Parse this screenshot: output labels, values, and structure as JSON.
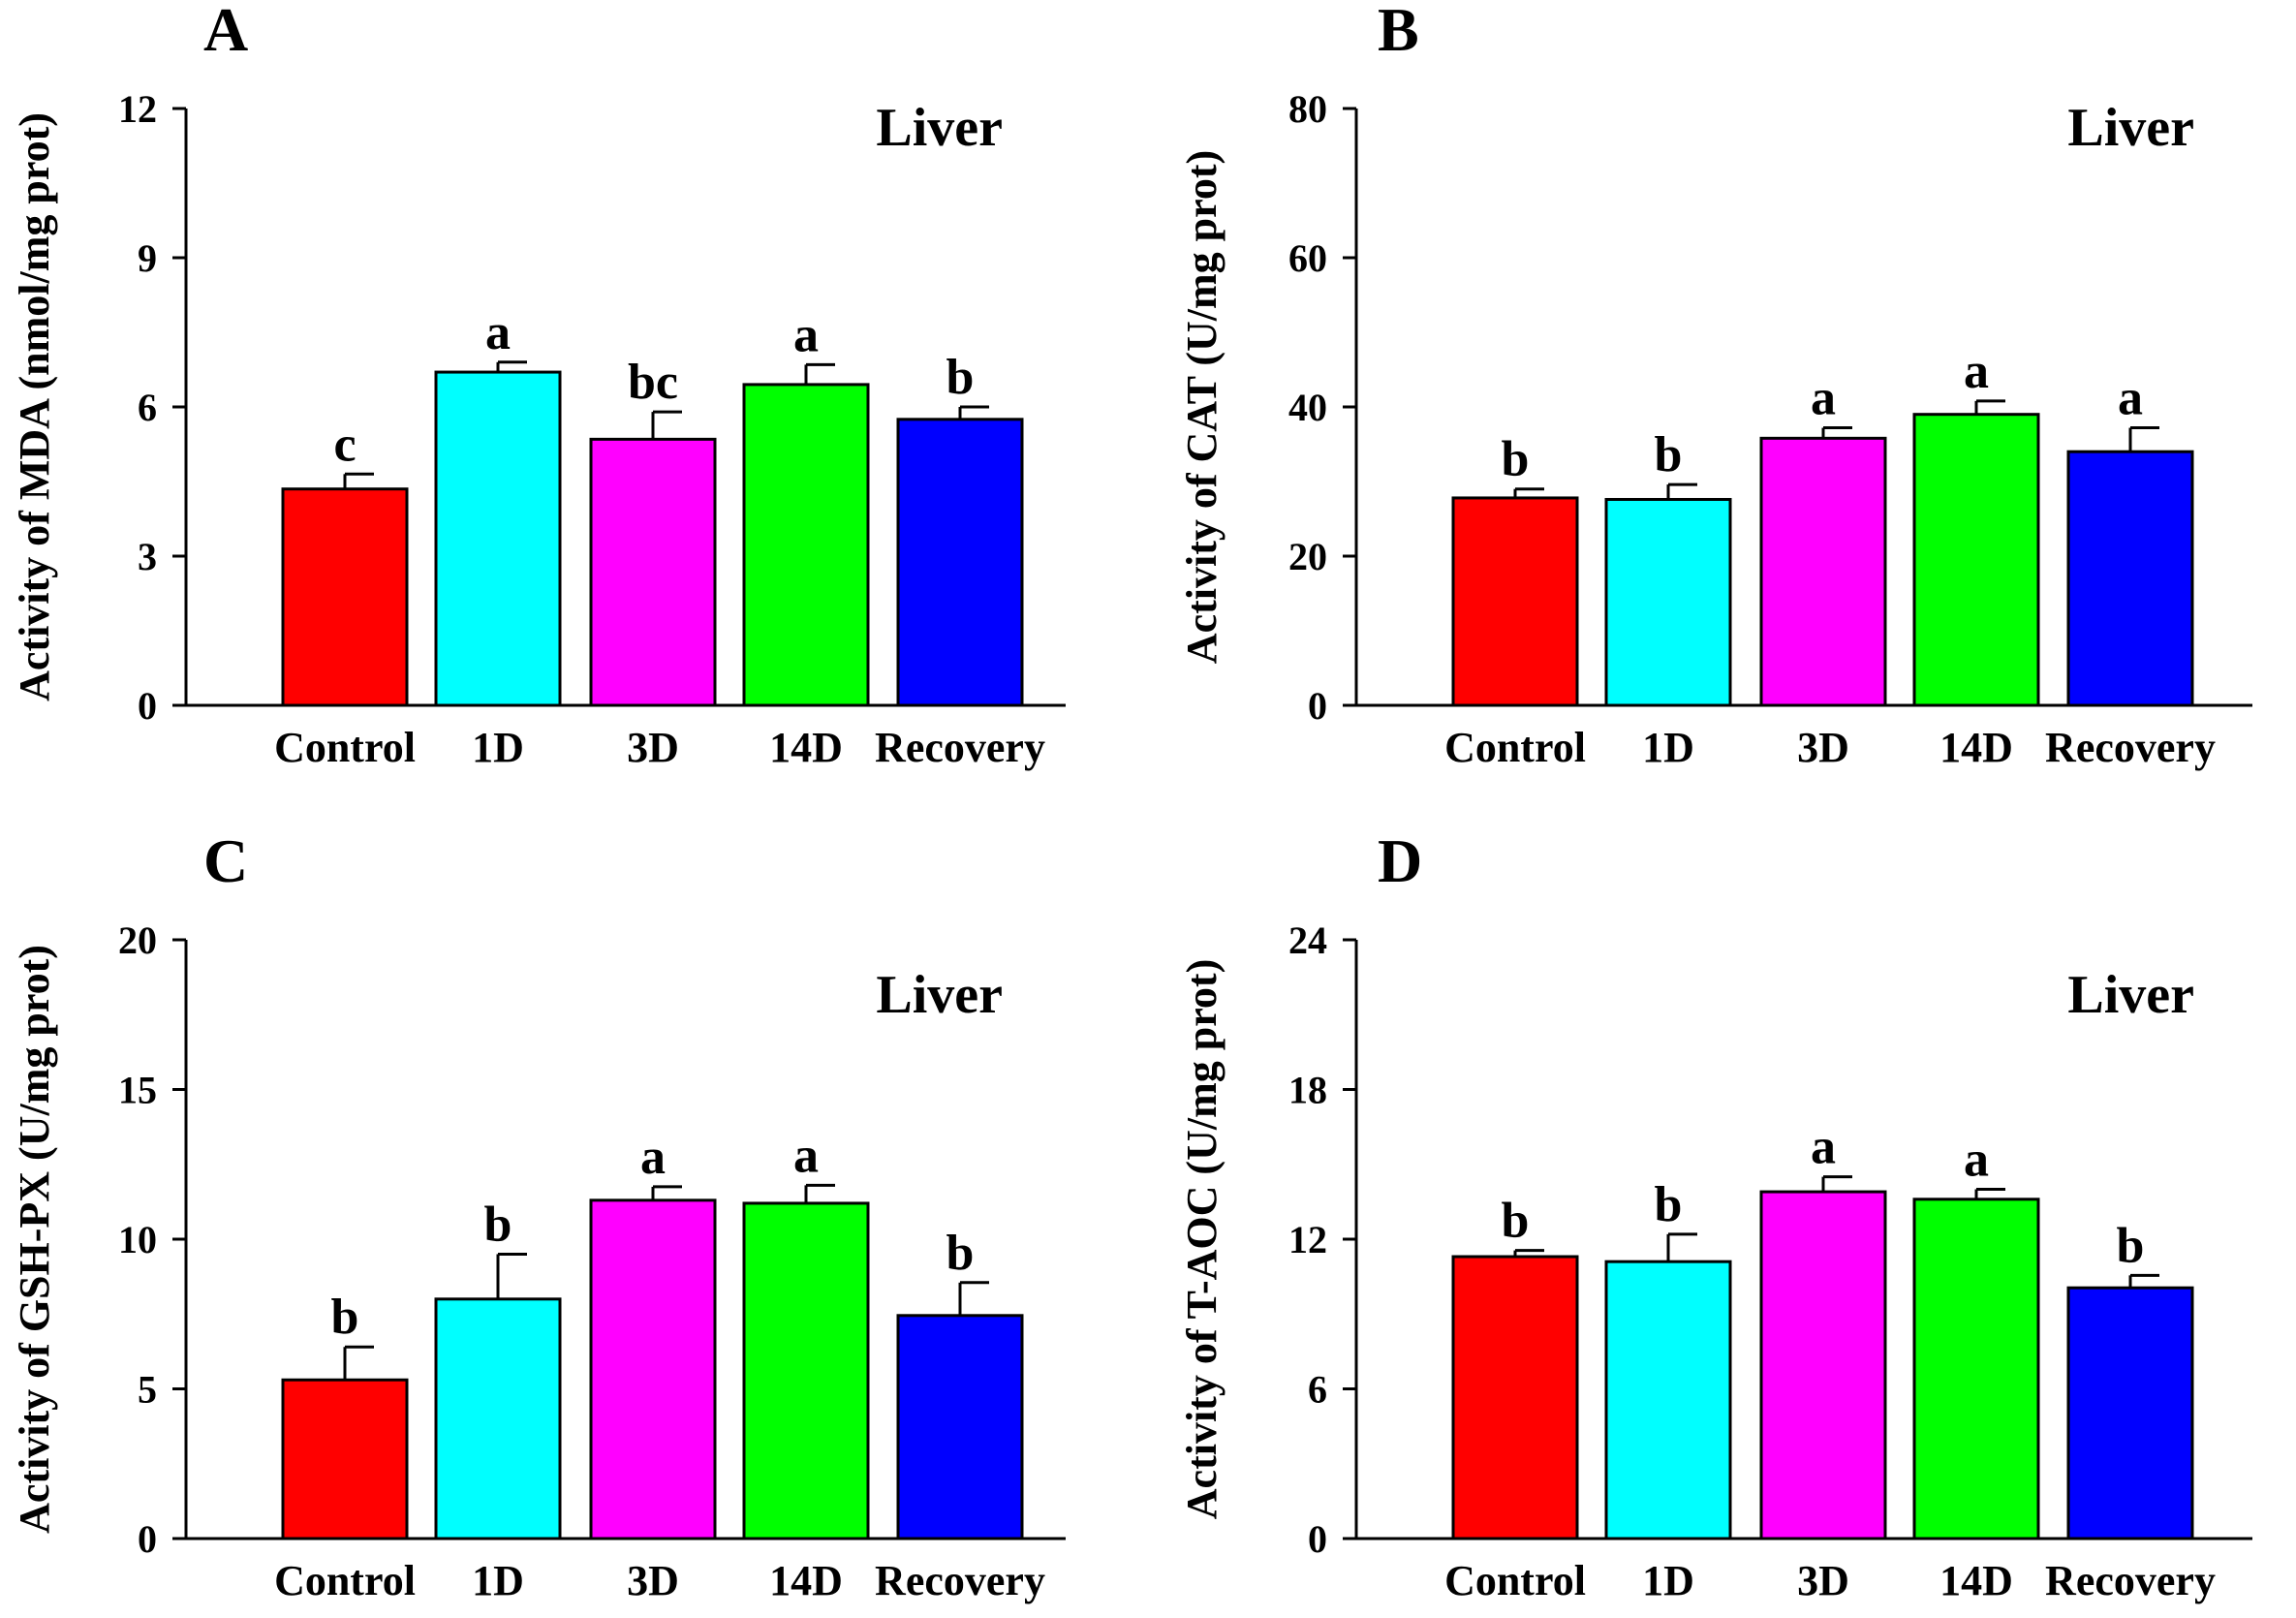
{
  "chart_data": [
    {
      "type": "bar",
      "panel_label": "A",
      "tissue_label": "Liver",
      "ylabel": "Activity of MDA (nmol/mg prot)",
      "categories": [
        "Control",
        "1D",
        "3D",
        "14D",
        "Recovery"
      ],
      "values": [
        4.35,
        6.7,
        5.35,
        6.45,
        5.75
      ],
      "errors": [
        0.3,
        0.2,
        0.55,
        0.4,
        0.25
      ],
      "significance": [
        "c",
        "a",
        "bc",
        "a",
        "b"
      ],
      "colors": [
        "#ff0000",
        "#00ffff",
        "#ff00ff",
        "#00ff00",
        "#0000ff"
      ],
      "ylim": [
        0,
        12
      ],
      "yticks": [
        "0",
        "3",
        "6",
        "9",
        "12"
      ]
    },
    {
      "type": "bar",
      "panel_label": "B",
      "tissue_label": "Liver",
      "ylabel": "Activity of CAT (U/mg prot)",
      "categories": [
        "Control",
        "1D",
        "3D",
        "14D",
        "Recovery"
      ],
      "values": [
        27.8,
        27.6,
        35.8,
        39.0,
        34.0
      ],
      "errors": [
        1.2,
        2.0,
        1.4,
        1.8,
        3.2
      ],
      "significance": [
        "b",
        "b",
        "a",
        "a",
        "a"
      ],
      "colors": [
        "#ff0000",
        "#00ffff",
        "#ff00ff",
        "#00ff00",
        "#0000ff"
      ],
      "ylim": [
        0,
        80
      ],
      "yticks": [
        "0",
        "20",
        "40",
        "60",
        "80"
      ]
    },
    {
      "type": "bar",
      "panel_label": "C",
      "tissue_label": "Liver",
      "ylabel": "Activity of GSH-PX (U/mg prot)",
      "categories": [
        "Control",
        "1D",
        "3D",
        "14D",
        "Recovery"
      ],
      "values": [
        5.3,
        8.0,
        11.3,
        11.2,
        7.45
      ],
      "errors": [
        1.1,
        1.5,
        0.45,
        0.6,
        1.1
      ],
      "significance": [
        "b",
        "b",
        "a",
        "a",
        "b"
      ],
      "colors": [
        "#ff0000",
        "#00ffff",
        "#ff00ff",
        "#00ff00",
        "#0000ff"
      ],
      "ylim": [
        0,
        20
      ],
      "yticks": [
        "0",
        "5",
        "10",
        "15",
        "20"
      ]
    },
    {
      "type": "bar",
      "panel_label": "D",
      "tissue_label": "Liver",
      "ylabel": "Activity of T-AOC (U/mg prot)",
      "categories": [
        "Control",
        "1D",
        "3D",
        "14D",
        "Recovery"
      ],
      "values": [
        11.3,
        11.1,
        13.9,
        13.6,
        10.05
      ],
      "errors": [
        0.25,
        1.1,
        0.6,
        0.4,
        0.5
      ],
      "significance": [
        "b",
        "b",
        "a",
        "a",
        "b"
      ],
      "colors": [
        "#ff0000",
        "#00ffff",
        "#ff00ff",
        "#00ff00",
        "#0000ff"
      ],
      "ylim": [
        0,
        24
      ],
      "yticks": [
        "0",
        "6",
        "12",
        "18",
        "24"
      ]
    }
  ]
}
